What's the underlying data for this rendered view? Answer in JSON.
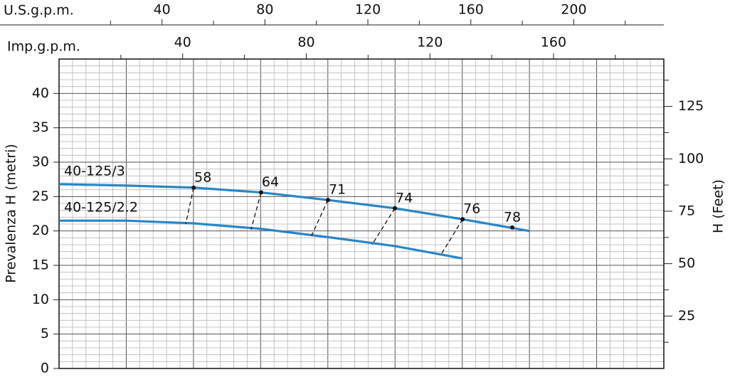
{
  "chart_data": {
    "type": "line",
    "ylabel": "Prevalenza H (metri)",
    "y2label": "H (Feet)",
    "xlabel": "U.S.g.p.m.",
    "x2label": "Imp.g.p.m.",
    "xlim": [
      0,
      235
    ],
    "xticks": [
      40,
      80,
      120,
      160,
      200
    ],
    "xticks_minor": [
      20,
      60,
      100,
      140,
      180,
      220
    ],
    "x2lim": [
      0,
      195.7
    ],
    "x2ticks": [
      40,
      80,
      120,
      160
    ],
    "x2ticks_minor": [
      20,
      60,
      100,
      140,
      180
    ],
    "ylim": [
      0,
      45
    ],
    "yticks": [
      0,
      5,
      10,
      15,
      20,
      25,
      30,
      35,
      40
    ],
    "y2lim": [
      0,
      147.6
    ],
    "y2ticks": [
      25,
      50,
      75,
      100,
      125
    ],
    "y2ticks_minor": [
      12.5,
      37.5,
      62.5,
      87.5,
      112.5,
      137.5
    ],
    "grid": true,
    "series": [
      {
        "name": "40-125/3",
        "color": "#2a86c6",
        "x": [
          0,
          26.3,
          52.3,
          78.5,
          104.5,
          130.5,
          156.8,
          182.7
        ],
        "values": [
          26.8,
          26.6,
          26.3,
          25.6,
          24.5,
          23.3,
          21.7,
          20.0
        ]
      },
      {
        "name": "40-125/2.2",
        "color": "#2a86c6",
        "x": [
          0,
          26.3,
          52.3,
          78.5,
          104.5,
          130.5,
          156.8
        ],
        "values": [
          21.5,
          21.5,
          21.1,
          20.3,
          19.1,
          17.8,
          16.0
        ]
      }
    ],
    "efficiency": {
      "x": [
        52.3,
        78.5,
        104.5,
        130.5,
        156.8,
        176.1
      ],
      "values": [
        26.3,
        25.6,
        24.5,
        23.3,
        21.7,
        20.5
      ],
      "labels": [
        "58",
        "64",
        "71",
        "74",
        "76",
        "78"
      ],
      "line_end_x": [
        49.2,
        74.6,
        98.1,
        121.6,
        148.5
      ],
      "line_end_values": [
        21.0,
        20.2,
        19.3,
        18.0,
        16.6
      ]
    }
  }
}
